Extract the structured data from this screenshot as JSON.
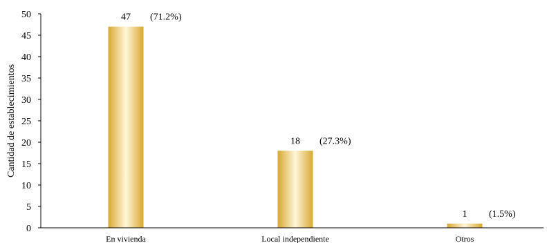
{
  "chart_data": {
    "type": "bar",
    "title": "",
    "xlabel": "",
    "ylabel": "Cantidad de establecimientos",
    "ylim": [
      0,
      50
    ],
    "yticks": [
      0,
      5,
      10,
      15,
      20,
      25,
      30,
      35,
      40,
      45,
      50
    ],
    "grid": false,
    "categories": [
      "En vivienda",
      "Local independiente",
      "Otros"
    ],
    "values": [
      47,
      18,
      1
    ],
    "data_labels": [
      "47",
      "18",
      "1"
    ],
    "percent_labels": [
      "(71.2%)",
      "(27.3%)",
      "(1.5%)"
    ],
    "bar_color": "#d9a833",
    "bar_highlight_color": "#fff6da"
  }
}
